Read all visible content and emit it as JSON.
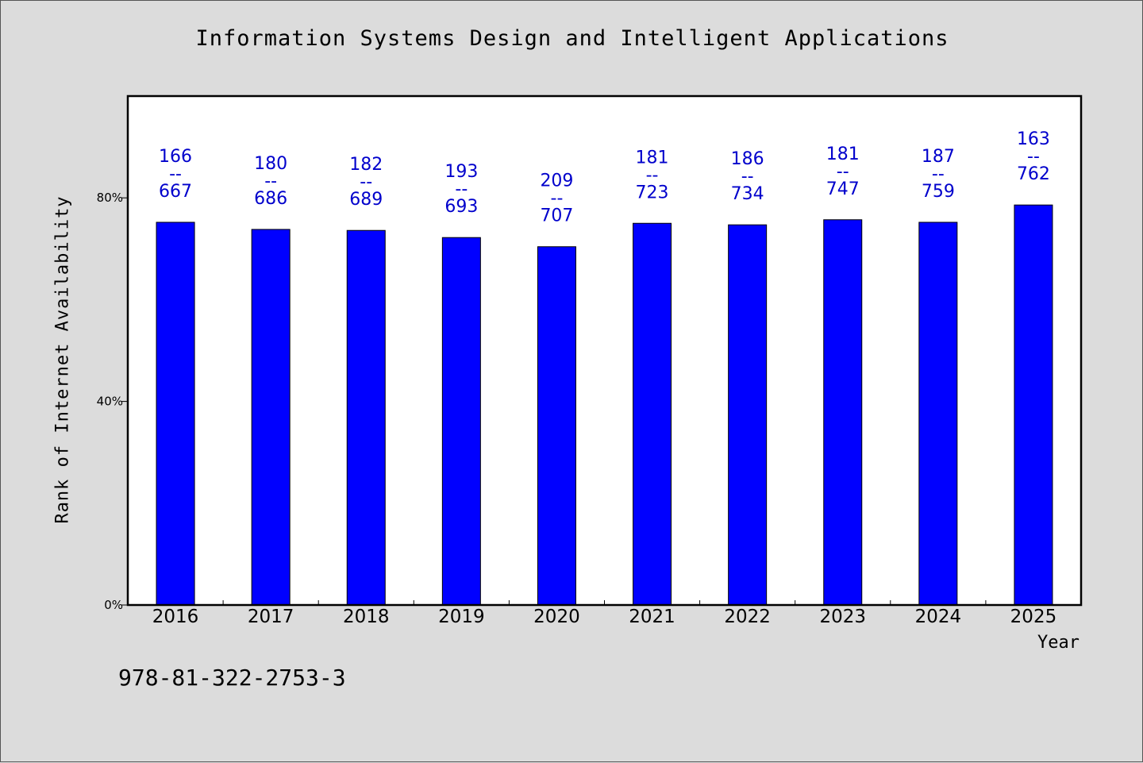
{
  "chart_data": {
    "type": "bar",
    "title": "Information Systems Design and Intelligent Applications",
    "xlabel": "Year",
    "ylabel": "Rank of Internet Availability",
    "categories": [
      "2016",
      "2017",
      "2018",
      "2019",
      "2020",
      "2021",
      "2022",
      "2023",
      "2024",
      "2025"
    ],
    "values": [
      75.2,
      73.8,
      73.6,
      72.2,
      70.4,
      75.0,
      74.7,
      75.7,
      75.2,
      78.6
    ],
    "data_labels": [
      {
        "top": "166",
        "mid": "--",
        "bottom": "667"
      },
      {
        "top": "180",
        "mid": "--",
        "bottom": "686"
      },
      {
        "top": "182",
        "mid": "--",
        "bottom": "689"
      },
      {
        "top": "193",
        "mid": "--",
        "bottom": "693"
      },
      {
        "top": "209",
        "mid": "--",
        "bottom": "707"
      },
      {
        "top": "181",
        "mid": "--",
        "bottom": "723"
      },
      {
        "top": "186",
        "mid": "--",
        "bottom": "734"
      },
      {
        "top": "181",
        "mid": "--",
        "bottom": "747"
      },
      {
        "top": "187",
        "mid": "--",
        "bottom": "759"
      },
      {
        "top": "163",
        "mid": "--",
        "bottom": "762"
      }
    ],
    "yticks": [
      {
        "value": 0,
        "label": "0%"
      },
      {
        "value": 40,
        "label": "40%"
      },
      {
        "value": 80,
        "label": "80%"
      }
    ],
    "ylim": [
      0,
      100
    ],
    "grid": false,
    "colors": {
      "bar": "#0000ff",
      "label": "#0000cc",
      "background": "#dcdcdc",
      "plot": "#ffffff"
    }
  },
  "footer": {
    "isbn": "978-81-322-2753-3"
  }
}
